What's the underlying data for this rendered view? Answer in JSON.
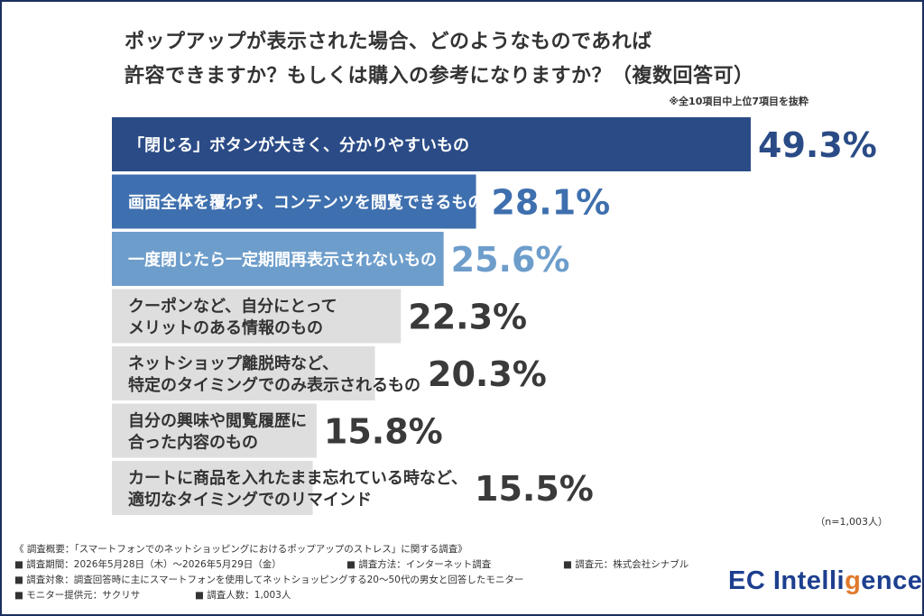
{
  "title_line1": "ポップアップが表示された場合、どのようなものであれば",
  "title_line2": "許容できますか？もしくは購入の参考になりますか？（複数回答可）",
  "note": "※全10項目中上位7項目を抜粋",
  "n_label": "（n=1,003人）",
  "chart_data": {
    "type": "bar",
    "orientation": "horizontal",
    "categories": [
      "「閉じる」ボタンが大きく、分かりやすいもの",
      "画面全体を覆わず、コンテンツを閲覧できるもの",
      "一度閉じたら一定期間再表示されないもの",
      "クーポンなど、自分にとって\nメリットのある情報のもの",
      "ネットショップ離脱時など、\n特定のタイミングでのみ表示されるもの",
      "自分の興味や閲覧履歴に\n合った内容のもの",
      "カートに商品を入れたまま忘れている時など、\n適切なタイミングでのリマインド"
    ],
    "values": [
      49.3,
      28.1,
      25.6,
      22.3,
      20.3,
      15.8,
      15.5
    ],
    "value_labels": [
      "49.3%",
      "28.1%",
      "25.6%",
      "22.3%",
      "20.3%",
      "15.8%",
      "15.5%"
    ],
    "bar_colors": [
      "#2a4b86",
      "#3e6fae",
      "#6d9dcb",
      "#dedede",
      "#dedede",
      "#dedede",
      "#dedede"
    ],
    "value_colors": [
      "#2a4b86",
      "#3e6fae",
      "#6d9dcb",
      "#3a3a3a",
      "#3a3a3a",
      "#3a3a3a",
      "#3a3a3a"
    ],
    "xlim": [
      0,
      49.3
    ]
  },
  "footer": {
    "line1": "《 調査概要：「スマートフォンでのネットショッピングにおけるポップアップのストレス」に関する調査》",
    "period": "■ 調査期間：2026年5月28日（木）〜2026年5月29日（金）",
    "method": "■ 調査方法：インターネット調査",
    "source": "■ 調査元：株式会社シナブル",
    "target": "■ 調査対象：調査回答時に主にスマートフォンを使用してネットショッピングする20〜50代の男女と回答したモニター",
    "monitor": "■ モニター提供元：サクリサ",
    "count": "■ 調査人数：1,003人"
  },
  "logo": {
    "text_before": "EC Intelli",
    "accent": "g",
    "text_after": "ence"
  }
}
